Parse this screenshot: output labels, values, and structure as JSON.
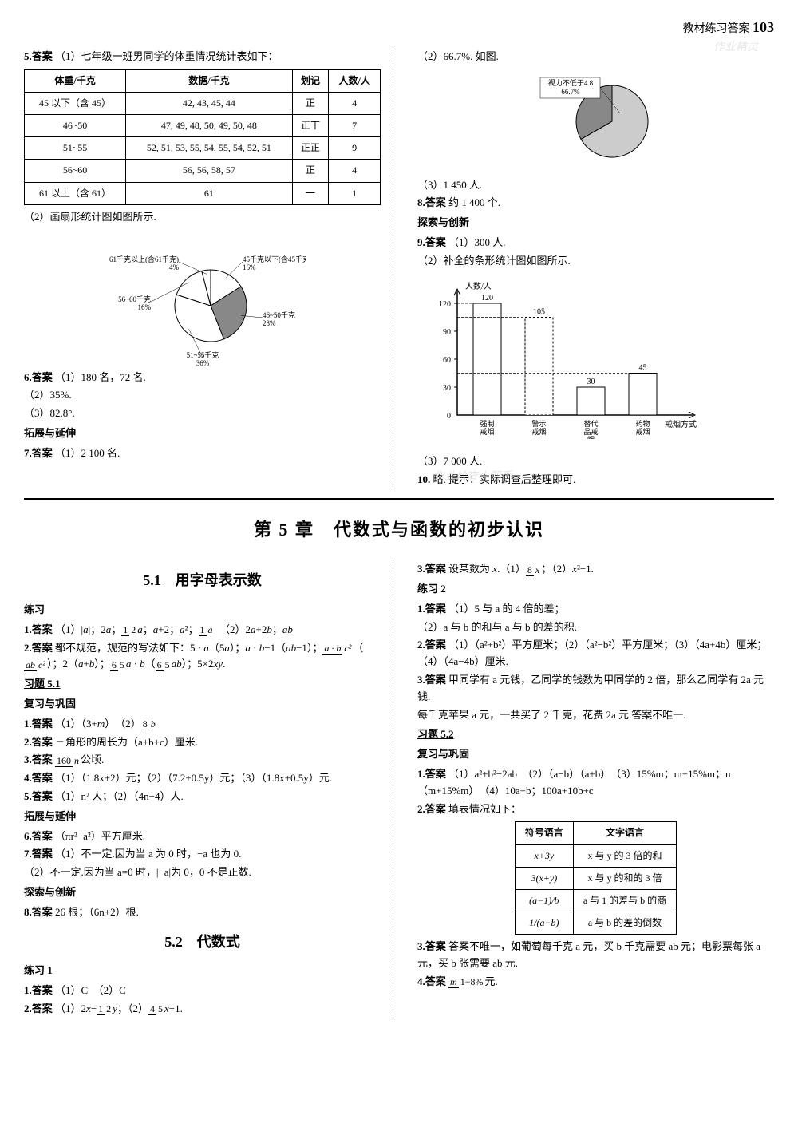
{
  "header": {
    "label": "教材练习答案",
    "page": "103"
  },
  "q5": {
    "label": "5.答案",
    "intro": "（1）七年级一班男同学的体重情况统计表如下：",
    "table": {
      "headers": [
        "体重/千克",
        "数据/千克",
        "划记",
        "人数/人"
      ],
      "rows": [
        [
          "45 以下（含 45）",
          "42, 43, 45, 44",
          "正",
          "4"
        ],
        [
          "46~50",
          "47, 49, 48, 50, 49, 50, 48",
          "正丅",
          "7"
        ],
        [
          "51~55",
          "52, 51, 53, 55, 54, 55, 54, 52, 51",
          "正正",
          "9"
        ],
        [
          "56~60",
          "56, 56, 58, 57",
          "正",
          "4"
        ],
        [
          "61 以上（含 61）",
          "61",
          "一",
          "1"
        ]
      ]
    },
    "part2": "（2）画扇形统计图如图所示."
  },
  "pie1": {
    "type": "pie",
    "background": "#ffffff",
    "slices": [
      {
        "label": "45千克以下(含45千克) 16%",
        "value": 16,
        "color": "#ffffff"
      },
      {
        "label": "46~50千克 28%",
        "value": 28,
        "color": "#888888"
      },
      {
        "label": "51~55千克 36%",
        "value": 36,
        "color": "#ffffff"
      },
      {
        "label": "56~60千克 16%",
        "value": 16,
        "color": "#ffffff"
      },
      {
        "label": "61千克以上(含61千克) 4%",
        "value": 4,
        "color": "#ffffff"
      }
    ],
    "label_fontsize": 9
  },
  "q6": {
    "label": "6.答案",
    "p1": "（1）180 名，72 名.",
    "p2": "（2）35%.",
    "p3": "（3）82.8°."
  },
  "ext1": {
    "heading": "拓展与延伸"
  },
  "q7": {
    "label": "7.答案",
    "p1": "（1）2 100 名."
  },
  "right_col": {
    "p2": "（2）66.7%. 如图.",
    "pie2": {
      "type": "pie",
      "label": "视力不低于4.8 66.7%",
      "main_value": 66.7,
      "main_color": "#cccccc",
      "other_color": "#888888",
      "label_fontsize": 9
    },
    "p3": "（3）1 450 人.",
    "q8": {
      "label": "8.答案",
      "text": "约 1 400 个."
    },
    "explore": "探索与创新",
    "q9": {
      "label": "9.答案",
      "p1": "（1）300 人.",
      "p2": "（2）补全的条形统计图如图所示."
    },
    "bar": {
      "type": "bar",
      "ylabel": "人数/人",
      "xlabel": "戒烟方式",
      "categories": [
        "强制戒烟",
        "警示戒烟",
        "替代品戒烟",
        "药物戒烟"
      ],
      "values": [
        120,
        105,
        30,
        45
      ],
      "highlight_index": 1,
      "highlight_value": 105,
      "ylim": [
        0,
        120
      ],
      "yticks": [
        30,
        60,
        90,
        120
      ],
      "bar_color": "#ffffff",
      "border_color": "#000000",
      "dashed_color": "#000000",
      "label_fontsize": 10
    },
    "q9p3": "（3）7 000 人.",
    "q10": {
      "label": "10.",
      "text": "略. 提示：实际调查后整理即可."
    }
  },
  "chapter": {
    "title": "第 5 章　代数式与函数的初步认识"
  },
  "sec51": {
    "title": "5.1　用字母表示数",
    "practice": "练习",
    "q1": {
      "label": "1.答案",
      "text": "（1）|a|；2a；(1/2)a；a+2；a²；(1/a)　（2）2a+2b；ab"
    },
    "q2": {
      "label": "2.答案",
      "text": "都不规范，规范的写法如下：5 · a（5a）；a · b−1（ab−1）；(a·b)/c²（ab/c²）；2（a+b）；(6/5)a · b（(6/5)ab）；5×2xy."
    },
    "ex51": "习题 5.1",
    "review": "复习与巩固",
    "r1": {
      "label": "1.答案",
      "text": "（1）（3+m）　（2）8/b"
    },
    "r2": {
      "label": "2.答案",
      "text": "三角形的周长为（a+b+c）厘米."
    },
    "r3": {
      "label": "3.答案",
      "text": "160/n 公顷."
    },
    "r4": {
      "label": "4.答案",
      "text": "（1）（1.8x+2）元；（2）（7.2+0.5y）元；（3）（1.8x+0.5y）元."
    },
    "r5": {
      "label": "5.答案",
      "text": "（1）n² 人；（2）（4n−4）人."
    },
    "ext": "拓展与延伸",
    "e6": {
      "label": "6.答案",
      "text": "（πr²−a²）平方厘米."
    },
    "e7": {
      "label": "7.答案",
      "p1": "（1）不一定.因为当 a 为 0 时，−a 也为 0.",
      "p2": "（2）不一定.因为当 a=0 时，|−a|为 0，0 不是正数."
    },
    "explore": "探索与创新",
    "e8": {
      "label": "8.答案",
      "text": "26 根；（6n+2）根."
    }
  },
  "sec52": {
    "title": "5.2　代数式",
    "practice1": "练习 1",
    "p1q1": {
      "label": "1.答案",
      "text": "（1）C　（2）C"
    },
    "p1q2": {
      "label": "2.答案",
      "text": "（1）2x−(1/2)y；（2）(4/5)x−1."
    },
    "p1q3": {
      "label": "3.答案",
      "text": "设某数为 x.（1）8/x；（2）x²−1."
    },
    "practice2": "练习 2",
    "p2q1": {
      "label": "1.答案",
      "p1": "（1）5 与 a 的 4 倍的差；",
      "p2": "（2）a 与 b 的和与 a 与 b 的差的积."
    },
    "p2q2": {
      "label": "2.答案",
      "text": "（1）（a²+b²）平方厘米；（2）（a²−b²）平方厘米；（3）（4a+4b）厘米；（4）（4a−4b）厘米."
    },
    "p2q3": {
      "label": "3.答案",
      "p1": "甲同学有 a 元钱，乙同学的钱数为甲同学的 2 倍，那么乙同学有 2a 元钱.",
      "p2": "每千克苹果 a 元，一共买了 2 千克，花费 2a 元.答案不唯一."
    },
    "ex52": "习题 5.2",
    "review": "复习与巩固",
    "r1": {
      "label": "1.答案",
      "text": "（1）a²+b²−2ab　（2）（a−b）（a+b）　（3）15%m；m+15%m；n（m+15%m）　（4）10a+b；100a+10b+c"
    },
    "r2": {
      "label": "2.答案",
      "text": "填表情况如下："
    },
    "table2": {
      "headers": [
        "符号语言",
        "文字语言"
      ],
      "rows": [
        [
          "x+3y",
          "x 与 y 的 3 倍的和"
        ],
        [
          "3(x+y)",
          "x 与 y 的和的 3 倍"
        ],
        [
          "(a−1)/b",
          "a 与 1 的差与 b 的商"
        ],
        [
          "1/(a−b)",
          "a 与 b 的差的倒数"
        ]
      ]
    },
    "r3": {
      "label": "3.答案",
      "text": "答案不唯一，如葡萄每千克 a 元，买 b 千克需要 ab 元；电影票每张 a 元，买 b 张需要 ab 元."
    },
    "r4": {
      "label": "4.答案",
      "text": "m/(1−8%) 元."
    }
  },
  "watermarks": {
    "w1": "作业精灵",
    "w2": "作业检查小帮手"
  }
}
